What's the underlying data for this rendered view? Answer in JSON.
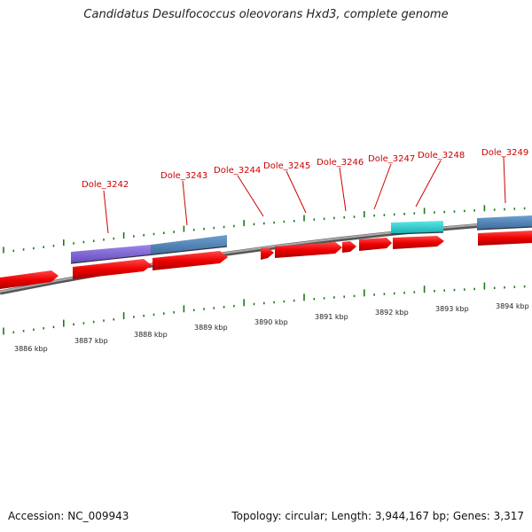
{
  "title": "Candidatus Desulfococcus oleovorans Hxd3, complete genome",
  "footer": {
    "accession": "Accession: NC_009943",
    "summary": "Topology: circular; Length: 3,944,167 bp; Genes: 3,317"
  },
  "gene_labels": [
    "Dole_3242",
    "Dole_3243",
    "Dole_3244",
    "Dole_3245",
    "Dole_3246",
    "Dole_3247",
    "Dole_3248",
    "Dole_3249"
  ],
  "kbp_labels": [
    "3886 kbp",
    "3887 kbp",
    "3888 kbp",
    "3889 kbp",
    "3890 kbp",
    "3891 kbp",
    "3892 kbp",
    "3893 kbp",
    "3894 kbp"
  ],
  "colors": {
    "cds": "#ee0000",
    "gene_blue": "#4a7fb5",
    "gene_purple": "#7a5fd0",
    "gene_cyan": "#1ec8c8",
    "tick": "#1a7a1a",
    "backbone": "#888888",
    "label": "#cc0000"
  }
}
